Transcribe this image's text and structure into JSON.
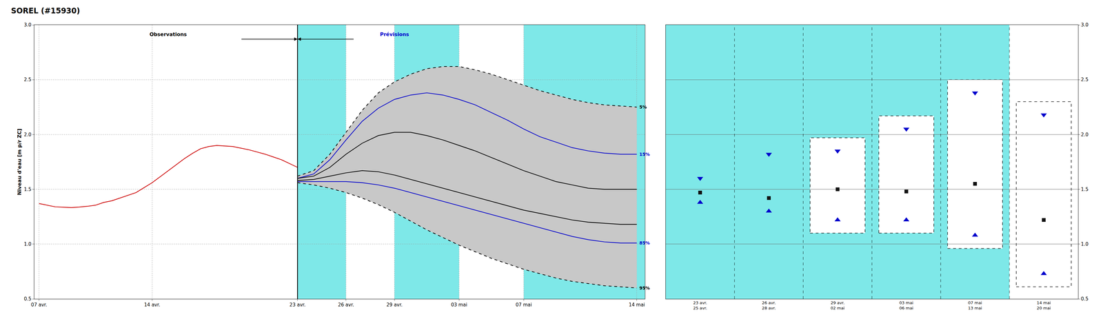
{
  "chart_data": [
    {
      "type": "line",
      "title": "SOREL (#15930)",
      "ylabel": "Niveau d'eau [m p/r ZC]",
      "xlim": [
        -0.3,
        37.5
      ],
      "xticks": [
        {
          "value": 0,
          "label": "07 avr."
        },
        {
          "value": 7,
          "label": "14 avr."
        },
        {
          "value": 16,
          "label": "23 avr."
        },
        {
          "value": 19,
          "label": "26 avr."
        },
        {
          "value": 22,
          "label": "29 avr."
        },
        {
          "value": 26,
          "label": "03 mai"
        },
        {
          "value": 30,
          "label": "07 mai"
        },
        {
          "value": 37,
          "label": "14 mai"
        }
      ],
      "ylim": [
        0.5,
        3.0
      ],
      "yticks": [
        0.5,
        {
          "value": 1.0,
          "label": "1.0"
        },
        1.5,
        {
          "value": 2.0,
          "label": "2.0"
        },
        2.5,
        {
          "value": 3.0,
          "label": "3.0"
        }
      ],
      "grid": true,
      "bands": [
        {
          "from": 16,
          "to": 19,
          "color": "#7ee8e8"
        },
        {
          "from": 19,
          "to": 22,
          "color": "#ffffff"
        },
        {
          "from": 22,
          "to": 26,
          "color": "#7ee8e8"
        },
        {
          "from": 26,
          "to": 30,
          "color": "#ffffff"
        },
        {
          "from": 30,
          "to": 37.5,
          "color": "#7ee8e8"
        }
      ],
      "vlines": [
        16
      ],
      "series": [
        {
          "type": "band",
          "color": "#c8c8c8",
          "x": [
            16,
            17,
            18,
            19,
            20,
            21,
            22,
            23,
            24,
            25,
            26,
            27,
            28,
            29,
            30,
            31,
            32,
            33,
            34,
            35,
            36,
            37
          ],
          "values": [
            1.62,
            1.67,
            1.82,
            2.02,
            2.22,
            2.38,
            2.48,
            2.55,
            2.6,
            2.62,
            2.62,
            2.59,
            2.55,
            2.5,
            2.45,
            2.4,
            2.36,
            2.32,
            2.29,
            2.27,
            2.26,
            2.25
          ],
          "values_to": [
            1.56,
            1.54,
            1.51,
            1.47,
            1.42,
            1.36,
            1.29,
            1.21,
            1.13,
            1.06,
            0.99,
            0.93,
            0.87,
            0.82,
            0.77,
            0.73,
            0.69,
            0.66,
            0.64,
            0.62,
            0.61,
            0.6
          ]
        },
        {
          "color": "#cc0000",
          "line_style": "solid",
          "x": [
            0,
            0.5,
            1,
            1.5,
            2,
            2.5,
            3,
            3.5,
            4,
            4.5,
            5,
            5.5,
            6,
            6.5,
            7,
            7.5,
            8,
            8.5,
            9,
            9.5,
            10,
            10.5,
            11,
            11.5,
            12,
            12.5,
            13,
            13.5,
            14,
            14.5,
            15,
            15.5,
            16
          ],
          "values": [
            1.37,
            1.355,
            1.34,
            1.337,
            1.333,
            1.338,
            1.345,
            1.355,
            1.38,
            1.395,
            1.42,
            1.445,
            1.47,
            1.515,
            1.56,
            1.615,
            1.67,
            1.725,
            1.78,
            1.828,
            1.87,
            1.89,
            1.9,
            1.895,
            1.89,
            1.875,
            1.86,
            1.84,
            1.82,
            1.795,
            1.77,
            1.735,
            1.7
          ]
        },
        {
          "name": "5%",
          "color": "#000000",
          "line_style": "dashed",
          "x": [
            16,
            17,
            18,
            19,
            20,
            21,
            22,
            23,
            24,
            25,
            26,
            27,
            28,
            29,
            30,
            31,
            32,
            33,
            34,
            35,
            36,
            37
          ],
          "values": [
            1.62,
            1.67,
            1.82,
            2.02,
            2.22,
            2.38,
            2.48,
            2.55,
            2.6,
            2.62,
            2.62,
            2.59,
            2.55,
            2.5,
            2.45,
            2.4,
            2.36,
            2.32,
            2.29,
            2.27,
            2.26,
            2.25
          ]
        },
        {
          "name": "95%",
          "color": "#000000",
          "line_style": "dashed",
          "x": [
            16,
            17,
            18,
            19,
            20,
            21,
            22,
            23,
            24,
            25,
            26,
            27,
            28,
            29,
            30,
            31,
            32,
            33,
            34,
            35,
            36,
            37
          ],
          "values": [
            1.56,
            1.54,
            1.51,
            1.47,
            1.42,
            1.36,
            1.29,
            1.21,
            1.13,
            1.06,
            0.99,
            0.93,
            0.87,
            0.82,
            0.77,
            0.73,
            0.69,
            0.66,
            0.64,
            0.62,
            0.61,
            0.6
          ]
        },
        {
          "name": "15%",
          "color": "#0000cc",
          "line_style": "solid",
          "x": [
            16,
            17,
            18,
            19,
            20,
            21,
            22,
            23,
            24,
            25,
            26,
            27,
            28,
            29,
            30,
            31,
            32,
            33,
            34,
            35,
            36,
            37
          ],
          "values": [
            1.6,
            1.64,
            1.77,
            1.95,
            2.12,
            2.24,
            2.32,
            2.36,
            2.38,
            2.36,
            2.32,
            2.27,
            2.2,
            2.13,
            2.05,
            1.98,
            1.93,
            1.88,
            1.85,
            1.83,
            1.82,
            1.82
          ]
        },
        {
          "name": "85%",
          "color": "#0000cc",
          "line_style": "solid",
          "x": [
            16,
            17,
            18,
            19,
            20,
            21,
            22,
            23,
            24,
            25,
            26,
            27,
            28,
            29,
            30,
            31,
            32,
            33,
            34,
            35,
            36,
            37
          ],
          "values": [
            1.57,
            1.57,
            1.57,
            1.57,
            1.56,
            1.54,
            1.51,
            1.47,
            1.43,
            1.39,
            1.35,
            1.31,
            1.27,
            1.23,
            1.19,
            1.15,
            1.11,
            1.07,
            1.04,
            1.02,
            1.01,
            1.01
          ]
        },
        {
          "color": "#000000",
          "line_style": "solid",
          "x": [
            16,
            17,
            18,
            19,
            20,
            21,
            22,
            23,
            24,
            25,
            26,
            27,
            28,
            29,
            30,
            31,
            32,
            33,
            34,
            35,
            36,
            37
          ],
          "values": [
            1.6,
            1.62,
            1.7,
            1.82,
            1.92,
            1.99,
            2.02,
            2.02,
            1.99,
            1.95,
            1.9,
            1.85,
            1.79,
            1.73,
            1.67,
            1.62,
            1.57,
            1.54,
            1.51,
            1.5,
            1.5,
            1.5
          ]
        },
        {
          "color": "#000000",
          "line_style": "solid",
          "x": [
            16,
            17,
            18,
            19,
            20,
            21,
            22,
            23,
            24,
            25,
            26,
            27,
            28,
            29,
            30,
            31,
            32,
            33,
            34,
            35,
            36,
            37
          ],
          "values": [
            1.58,
            1.59,
            1.62,
            1.65,
            1.67,
            1.66,
            1.63,
            1.59,
            1.55,
            1.51,
            1.47,
            1.43,
            1.39,
            1.35,
            1.31,
            1.28,
            1.25,
            1.22,
            1.2,
            1.19,
            1.18,
            1.18
          ]
        }
      ],
      "annotations": [
        {
          "text": "Observations",
          "x": 8.0,
          "y": 2.88,
          "color": "#000000"
        },
        {
          "text": "Prévisions",
          "x": 22.0,
          "y": 2.88,
          "color": "#0000cc"
        }
      ],
      "arrows": [
        {
          "from": 12.5,
          "to": 16.0,
          "y": 2.87
        },
        {
          "from": 19.5,
          "to": 16.0,
          "y": 2.87
        }
      ]
    },
    {
      "type": "scatter",
      "categories": [
        "23 avr.\n25 avr.",
        "26 avr.\n28 avr.",
        "29 avr.\n02 mai",
        "03 mai\n06 mai",
        "07 mai\n13 mai",
        "14 mai\n20 mai"
      ],
      "ylim": [
        0.5,
        3.0
      ],
      "yticks": [
        0.5,
        {
          "value": 1.0,
          "label": "1.0"
        },
        1.5,
        {
          "value": 2.0,
          "label": "2.0"
        },
        2.5,
        {
          "value": 3.0,
          "label": "3.0"
        }
      ],
      "grid": true,
      "background_colors": [
        "#7ee8e8",
        "#7ee8e8",
        "#7ee8e8",
        "#7ee8e8",
        "#7ee8e8",
        "#ffffff"
      ],
      "boxes": [
        null,
        null,
        {
          "from": 1.1,
          "to": 1.97
        },
        {
          "from": 1.1,
          "to": 2.17
        },
        {
          "from": 0.96,
          "to": 2.5
        },
        {
          "from": 0.61,
          "to": 2.3
        }
      ],
      "series": [
        {
          "marker": "triangle-down",
          "color": "#0000cc",
          "values": [
            1.6,
            1.82,
            1.85,
            2.05,
            2.38,
            2.18
          ]
        },
        {
          "marker": "square",
          "color": "#111111",
          "values": [
            1.47,
            1.42,
            1.5,
            1.48,
            1.55,
            1.22
          ]
        },
        {
          "marker": "triangle-up",
          "color": "#0000cc",
          "values": [
            1.38,
            1.3,
            1.22,
            1.22,
            1.08,
            0.73
          ]
        }
      ]
    }
  ]
}
